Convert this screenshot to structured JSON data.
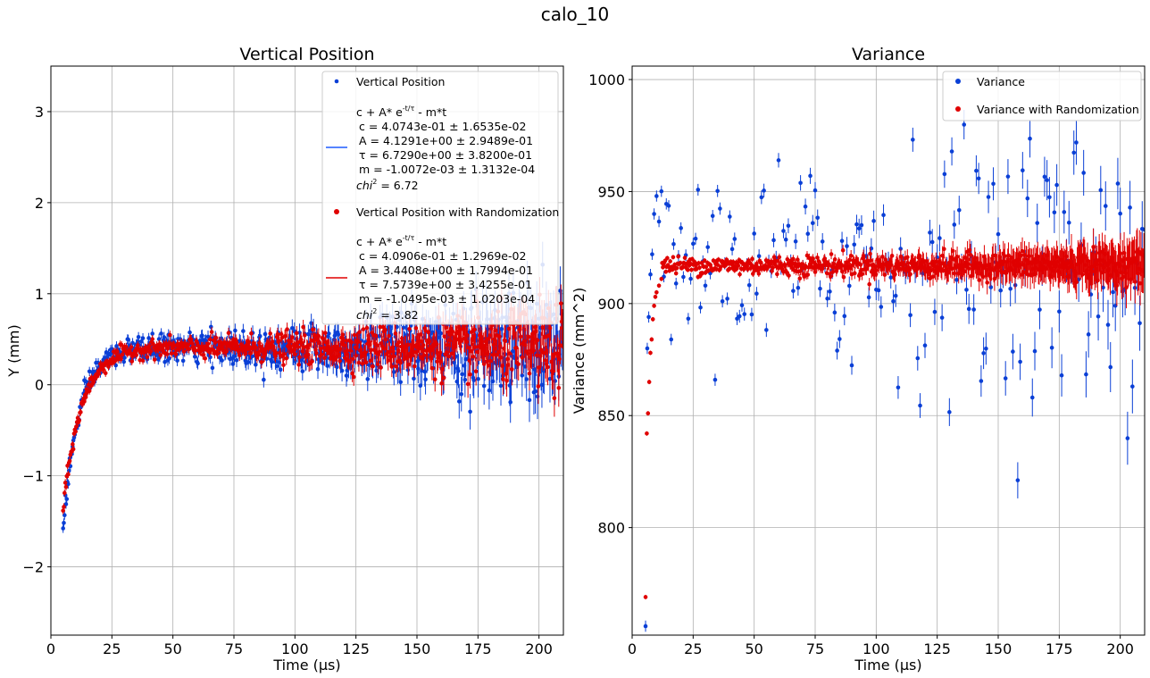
{
  "figure": {
    "title": "calo_10"
  },
  "chart_data": [
    {
      "type": "scatter",
      "title": "Vertical Position",
      "xlabel": "Time (µs)",
      "ylabel": "Y (mm)",
      "xlim": [
        0,
        210
      ],
      "ylim": [
        -2.75,
        3.5
      ],
      "xticks": [
        0,
        25,
        50,
        75,
        100,
        125,
        150,
        175,
        200
      ],
      "yticks": [
        -2,
        -1,
        0,
        1,
        2,
        3
      ],
      "ytick_labels": [
        "−2",
        "−1",
        "0",
        "1",
        "2",
        "3"
      ],
      "grid": true,
      "legend_position": "top-right",
      "legend": [
        {
          "kind": "marker",
          "color": "#0a3fd6",
          "label": "Vertical Position"
        },
        {
          "kind": "line",
          "color": "#1f5cff",
          "lines": [
            "c + A* e^{-t/τ} - m*t",
            "c = 4.0743e-01 ± 1.6535e-02",
            "A = 4.1291e+00 ± 2.9489e-01",
            "τ = 6.7290e+00 ± 3.8200e-01",
            "m = -1.0072e-03 ± 1.3132e-04"
          ],
          "chi_label": "chi",
          "chi_value": "= 6.72"
        },
        {
          "kind": "marker",
          "color": "#e00000",
          "label": "Vertical Position with Randomization"
        },
        {
          "kind": "line",
          "color": "#e00000",
          "lines": [
            "c + A* e^{-t/τ} - m*t",
            "c = 4.0906e-01 ± 1.2969e-02",
            "A = 3.4408e+00 ± 1.7994e-01",
            "τ = 7.5739e+00 ± 3.4255e-01",
            "m = -1.0495e-03 ± 1.0203e-04"
          ],
          "chi_label": "chi",
          "chi_value": "= 3.82"
        }
      ],
      "series": [
        {
          "name": "Vertical Position",
          "color": "#0a3fd6",
          "model": {
            "c": 0.40743,
            "A": 4.1291,
            "tau": 6.729,
            "m": -0.0010072
          },
          "t_range": [
            5,
            210
          ],
          "t_step": 0.3,
          "noise": [
            0.06,
            0.3
          ],
          "err": [
            0.05,
            0.22
          ]
        },
        {
          "name": "Vertical Position with Randomization",
          "color": "#e00000",
          "model": {
            "c": 0.40906,
            "A": 3.4408,
            "tau": 7.5739,
            "m": -0.0010495
          },
          "t_range": [
            5,
            210
          ],
          "t_step": 0.3,
          "noise": [
            0.04,
            0.2
          ],
          "err": [
            0.04,
            0.17
          ]
        }
      ]
    },
    {
      "type": "scatter",
      "title": "Variance",
      "xlabel": "Time (µs)",
      "ylabel": "Variance (mm^2)",
      "xlim": [
        0,
        210
      ],
      "ylim": [
        752,
        1006
      ],
      "xticks": [
        0,
        25,
        50,
        75,
        100,
        125,
        150,
        175,
        200
      ],
      "yticks": [
        800,
        850,
        900,
        950,
        1000
      ],
      "grid": true,
      "legend_position": "top-right",
      "legend": [
        {
          "kind": "marker",
          "color": "#0a3fd6",
          "label": "Variance"
        },
        {
          "kind": "marker",
          "color": "#e00000",
          "label": "Variance with Randomization"
        }
      ],
      "series": [
        {
          "name": "Variance",
          "color": "#0a3fd6",
          "plateau": 918,
          "spread": 30,
          "t_range": [
            5,
            210
          ],
          "t_step": 1.0,
          "err": [
            2.5,
            10
          ],
          "early": [
            [
              5.5,
              756
            ],
            [
              6.2,
              880
            ],
            [
              6.8,
              894
            ],
            [
              7.5,
              913
            ],
            [
              8.2,
              922
            ],
            [
              9,
              940
            ],
            [
              10,
              948
            ]
          ]
        },
        {
          "name": "Variance with Randomization",
          "color": "#e00000",
          "plateau": 917,
          "spread": 3,
          "t_range": [
            5,
            210
          ],
          "t_step": 0.3,
          "err": [
            1.0,
            9
          ],
          "early": [
            [
              5.5,
              769
            ],
            [
              6.0,
              842
            ],
            [
              6.5,
              851
            ],
            [
              7.0,
              865
            ],
            [
              7.5,
              878
            ],
            [
              8.0,
              884
            ],
            [
              8.5,
              893
            ],
            [
              9.0,
              899
            ],
            [
              9.5,
              903
            ],
            [
              10.0,
              905
            ],
            [
              11.0,
              908
            ],
            [
              12.0,
              911
            ]
          ]
        }
      ]
    }
  ]
}
